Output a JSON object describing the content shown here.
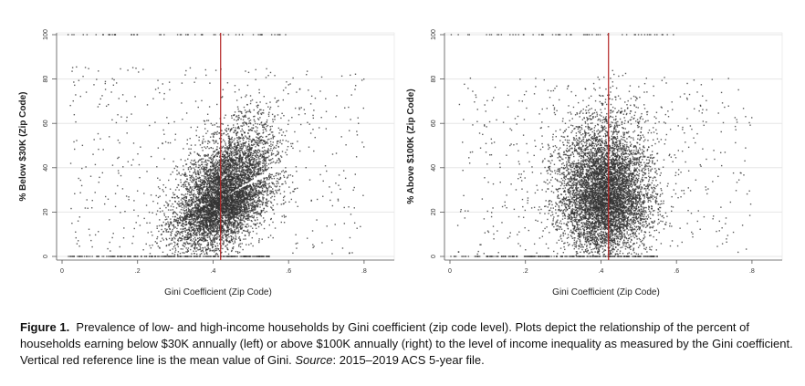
{
  "chart_data": [
    {
      "type": "scatter",
      "xlabel": "Gini Coefficient (Zip Code)",
      "ylabel": "% Below $30K (Zip Code)",
      "xlim": [
        0,
        0.88
      ],
      "ylim": [
        0,
        100
      ],
      "xticks": [
        "0",
        ".2",
        ".4",
        ".6",
        ".8"
      ],
      "yticks": [
        "0",
        "20",
        "40",
        "60",
        "80",
        "100"
      ],
      "reference_line_x": 0.42,
      "reference_line_color": "#b22222",
      "point_color": "#333333",
      "grid": true,
      "cluster": {
        "center_x": 0.43,
        "center_y": 27,
        "spread_x": 0.065,
        "spread_y": 13,
        "correlation": 0.45,
        "extends_to_y": 90
      },
      "floor_points_at_y": 0,
      "ceiling_points_at_y": 100
    },
    {
      "type": "scatter",
      "xlabel": "Gini Coefficient (Zip Code)",
      "ylabel": "% Above $100K (Zip Code)",
      "xlim": [
        0,
        0.88
      ],
      "ylim": [
        0,
        100
      ],
      "xticks": [
        "0",
        ".2",
        ".4",
        ".6",
        ".8"
      ],
      "yticks": [
        "0",
        "20",
        "40",
        "60",
        "80",
        "100"
      ],
      "reference_line_x": 0.42,
      "reference_line_color": "#b22222",
      "point_color": "#333333",
      "grid": true,
      "cluster": {
        "center_x": 0.41,
        "center_y": 28,
        "spread_x": 0.06,
        "spread_y": 15,
        "correlation": 0.0,
        "extends_to_y": 85
      },
      "floor_points_at_y": 0,
      "ceiling_points_at_y": 100
    }
  ],
  "caption": {
    "label": "Figure 1.",
    "text_part1": "Prevalence of low- and high-income households by Gini coefficient (zip code level). Plots depict the relationship of the percent of households earning below $30K annually (left) or above $100K annually (right) to the level of income inequality as measured by the Gini coefficient. Vertical red reference line is the mean value of Gini. ",
    "source_label": "Source",
    "text_part2": ": 2015–2019 ACS 5-year file."
  }
}
